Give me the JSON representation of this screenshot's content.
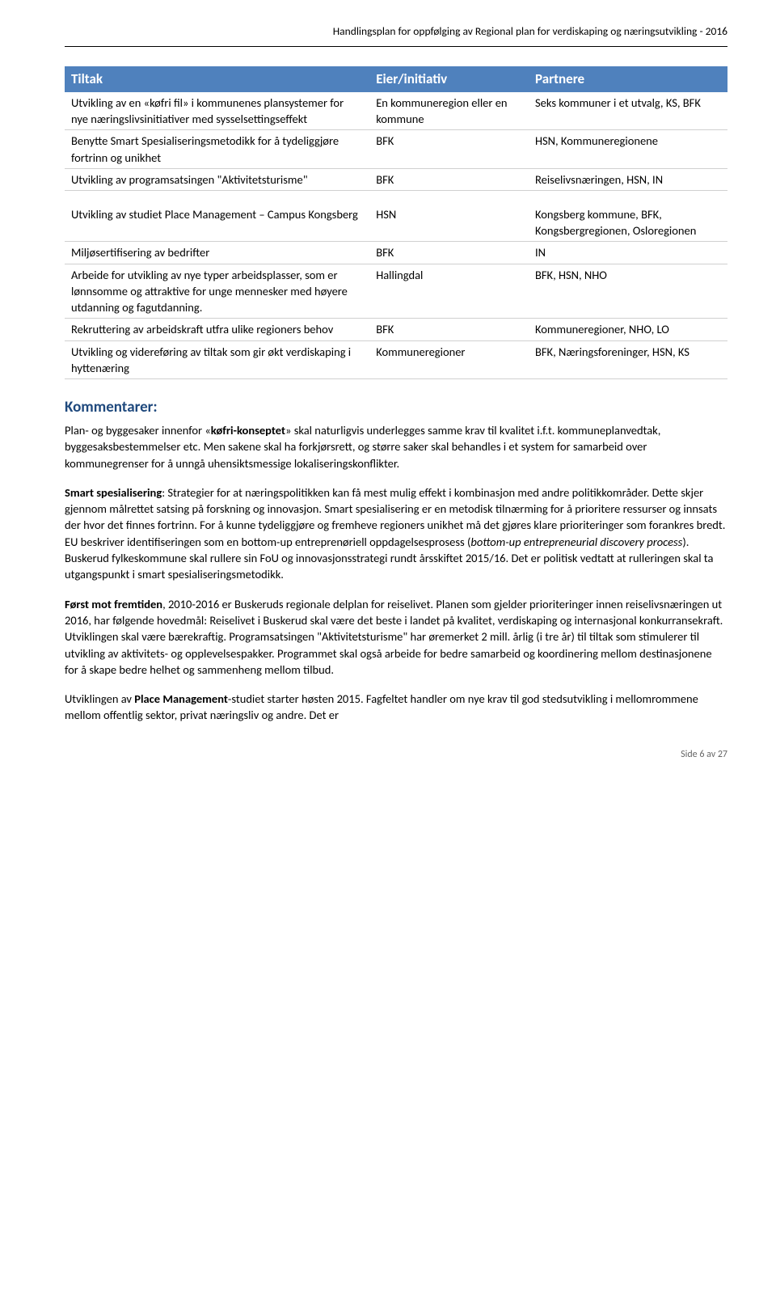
{
  "header": {
    "text": "Handlingsplan for oppfølging av Regional plan for verdiskaping og næringsutvikling - 2016"
  },
  "table": {
    "columns": [
      "Tiltak",
      "Eier/initiativ",
      "Partnere"
    ],
    "rows": [
      {
        "tiltak": "Utvikling av en «køfri fil» i kommunenes plansystemer for nye næringslivsinitiativer med sysselsettingseffekt",
        "eier": "En kommuneregion eller en kommune",
        "partnere": "Seks kommuner i et utvalg, KS, BFK"
      },
      {
        "tiltak": "Benytte Smart Spesialiseringsmetodikk  for å tydeliggjøre fortrinn og unikhet",
        "eier": "BFK",
        "partnere": "HSN, Kommuneregionene"
      },
      {
        "tiltak": "Utvikling av programsatsingen \"Aktivitetsturisme\"",
        "eier": "BFK",
        "partnere": "Reiselivsnæringen, HSN, IN"
      }
    ],
    "rows2": [
      {
        "tiltak": "Utvikling av studiet Place Management – Campus Kongsberg",
        "eier": "HSN",
        "partnere": "Kongsberg kommune, BFK, Kongsbergregionen, Osloregionen"
      },
      {
        "tiltak": "Miljøsertifisering av bedrifter",
        "eier": "BFK",
        "partnere": "IN"
      },
      {
        "tiltak": "Arbeide for utvikling av nye typer arbeidsplasser, som er lønnsomme og attraktive for unge mennesker med høyere utdanning og fagutdanning.",
        "eier": "Hallingdal",
        "partnere": "BFK, HSN, NHO"
      },
      {
        "tiltak": "Rekruttering av arbeidskraft utfra ulike regioners behov",
        "eier": "BFK",
        "partnere": "Kommuneregioner, NHO, LO"
      },
      {
        "tiltak": "Utvikling og videreføring av tiltak som gir økt verdiskaping i hyttenæring",
        "eier": "Kommuneregioner",
        "partnere": "BFK, Næringsforeninger, HSN, KS"
      }
    ]
  },
  "comments": {
    "heading": "Kommentarer:",
    "p1_a": "Plan- og byggesaker innenfor «",
    "p1_b": "køfri-konseptet",
    "p1_c": "» skal naturligvis underlegges samme krav til kvalitet i.f.t. kommuneplanvedtak, byggesaksbestemmelser etc. Men sakene skal ha forkjørsrett, og større saker skal behandles i et system for samarbeid over kommunegrenser for å unngå uhensiktsmessige lokaliseringskonflikter.",
    "p2_a": "Smart spesialisering",
    "p2_b": ": Strategier for at næringspolitikken kan få mest mulig effekt i kombinasjon med andre politikkområder. Dette skjer gjennom målrettet satsing på forskning og innovasjon. Smart spesialisering er en metodisk tilnærming for å prioritere ressurser og innsats der hvor det finnes fortrinn. For å kunne tydeliggjøre og fremheve regioners unikhet må det gjøres klare prioriteringer som forankres bredt. EU beskriver identifiseringen som en bottom-up entreprenøriell oppdagelsesprosess (",
    "p2_c": "bottom-up entrepreneurial discovery process",
    "p2_d": "). Buskerud fylkeskommune skal rullere sin FoU og innovasjonsstrategi rundt årsskiftet 2015/16. Det er politisk vedtatt at rulleringen skal ta utgangspunkt i smart spesialiseringsmetodikk.",
    "p3_a": "Først mot fremtiden",
    "p3_b": ", 2010-2016 er Buskeruds regionale delplan for reiselivet. Planen som gjelder prioriteringer innen reiselivsnæringen ut 2016, har følgende hovedmål: Reiselivet i Buskerud skal være det beste i landet på kvalitet, verdiskaping og internasjonal konkurransekraft. Utviklingen skal være bærekraftig. Programsatsingen \"Aktivitetsturisme\" har øremerket 2 mill. årlig (i tre år) til tiltak som stimulerer til utvikling av aktivitets- og opplevelsespakker. Programmet skal også arbeide for bedre samarbeid og koordinering mellom destinasjonene for å skape bedre helhet og sammenheng mellom tilbud.",
    "p4_a": "Utviklingen av ",
    "p4_b": "Place Management",
    "p4_c": "-studiet starter høsten 2015. Fagfeltet handler om nye krav til god stedsutvikling i mellomrommene mellom offentlig sektor, privat næringsliv og andre. Det er"
  },
  "footer": {
    "text": "Side 6 av 27"
  }
}
